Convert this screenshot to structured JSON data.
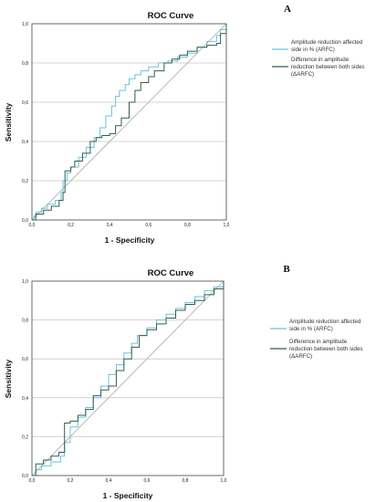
{
  "chart_data": [
    {
      "type": "line",
      "panel": "A",
      "title": "ROC Curve",
      "xlabel": "1 - Specificity",
      "ylabel": "Sensitivity",
      "xlim": [
        0,
        1
      ],
      "ylim": [
        0,
        1
      ],
      "xticks": [
        "0,0",
        "0,2",
        "0,4",
        "0,6",
        "0,8",
        "1,0"
      ],
      "yticks": [
        "0,0",
        "0,2",
        "0,4",
        "0,6",
        "0,8",
        "1,0"
      ],
      "grid": "horizontal",
      "legend_position": "right",
      "series": [
        {
          "name": "Amplitude reduction affected side in % (ARFC)",
          "color": "#6cc0e0",
          "points": [
            [
              0,
              0
            ],
            [
              0.01,
              0.02
            ],
            [
              0.02,
              0.04
            ],
            [
              0.05,
              0.06
            ],
            [
              0.08,
              0.08
            ],
            [
              0.12,
              0.1
            ],
            [
              0.15,
              0.14
            ],
            [
              0.16,
              0.2
            ],
            [
              0.18,
              0.24
            ],
            [
              0.2,
              0.27
            ],
            [
              0.24,
              0.32
            ],
            [
              0.28,
              0.37
            ],
            [
              0.32,
              0.42
            ],
            [
              0.35,
              0.47
            ],
            [
              0.38,
              0.53
            ],
            [
              0.41,
              0.58
            ],
            [
              0.43,
              0.63
            ],
            [
              0.45,
              0.66
            ],
            [
              0.48,
              0.69
            ],
            [
              0.5,
              0.72
            ],
            [
              0.53,
              0.74
            ],
            [
              0.56,
              0.76
            ],
            [
              0.6,
              0.78
            ],
            [
              0.65,
              0.8
            ],
            [
              0.7,
              0.81
            ],
            [
              0.75,
              0.83
            ],
            [
              0.8,
              0.85
            ],
            [
              0.85,
              0.88
            ],
            [
              0.9,
              0.91
            ],
            [
              0.95,
              0.94
            ],
            [
              0.97,
              0.97
            ],
            [
              1,
              1
            ]
          ]
        },
        {
          "name": "Difference in amplitude reduction between both sides (ΔARFC)",
          "color": "#2f5f4f",
          "points": [
            [
              0,
              0
            ],
            [
              0.02,
              0.03
            ],
            [
              0.06,
              0.05
            ],
            [
              0.1,
              0.07
            ],
            [
              0.14,
              0.1
            ],
            [
              0.16,
              0.14
            ],
            [
              0.17,
              0.25
            ],
            [
              0.2,
              0.27
            ],
            [
              0.22,
              0.3
            ],
            [
              0.26,
              0.34
            ],
            [
              0.3,
              0.4
            ],
            [
              0.33,
              0.42
            ],
            [
              0.36,
              0.43
            ],
            [
              0.4,
              0.44
            ],
            [
              0.43,
              0.48
            ],
            [
              0.46,
              0.52
            ],
            [
              0.5,
              0.6
            ],
            [
              0.53,
              0.66
            ],
            [
              0.56,
              0.7
            ],
            [
              0.6,
              0.73
            ],
            [
              0.63,
              0.76
            ],
            [
              0.68,
              0.8
            ],
            [
              0.72,
              0.82
            ],
            [
              0.76,
              0.84
            ],
            [
              0.8,
              0.86
            ],
            [
              0.85,
              0.88
            ],
            [
              0.9,
              0.89
            ],
            [
              0.95,
              0.9
            ],
            [
              0.97,
              0.95
            ],
            [
              1,
              1
            ]
          ]
        }
      ]
    },
    {
      "type": "line",
      "panel": "B",
      "title": "ROC Curve",
      "xlabel": "1 - Specificity",
      "ylabel": "Sensitivity",
      "xlim": [
        0,
        1
      ],
      "ylim": [
        0,
        1
      ],
      "xticks": [
        "0,0",
        "0,2",
        "0,4",
        "0,6",
        "0,8",
        "1,0"
      ],
      "yticks": [
        "0,0",
        "0,2",
        "0,4",
        "0,6",
        "0,8",
        "1,0"
      ],
      "grid": "horizontal",
      "legend_position": "right",
      "series": [
        {
          "name": "Amplitude reduction affected side in % (ARFC)",
          "color": "#6cc0e0",
          "points": [
            [
              0,
              0
            ],
            [
              0.02,
              0.03
            ],
            [
              0.05,
              0.05
            ],
            [
              0.1,
              0.07
            ],
            [
              0.15,
              0.1
            ],
            [
              0.17,
              0.17
            ],
            [
              0.2,
              0.25
            ],
            [
              0.24,
              0.3
            ],
            [
              0.28,
              0.35
            ],
            [
              0.32,
              0.4
            ],
            [
              0.36,
              0.46
            ],
            [
              0.4,
              0.52
            ],
            [
              0.44,
              0.57
            ],
            [
              0.48,
              0.63
            ],
            [
              0.52,
              0.68
            ],
            [
              0.55,
              0.72
            ],
            [
              0.6,
              0.76
            ],
            [
              0.65,
              0.8
            ],
            [
              0.7,
              0.83
            ],
            [
              0.75,
              0.86
            ],
            [
              0.8,
              0.89
            ],
            [
              0.85,
              0.92
            ],
            [
              0.9,
              0.95
            ],
            [
              0.95,
              0.97
            ],
            [
              1,
              1
            ]
          ]
        },
        {
          "name": "Difference in amplitude reduction between both sides (ΔARFC)",
          "color": "#2f5f4f",
          "points": [
            [
              0,
              0
            ],
            [
              0.02,
              0.06
            ],
            [
              0.06,
              0.08
            ],
            [
              0.1,
              0.1
            ],
            [
              0.14,
              0.12
            ],
            [
              0.17,
              0.27
            ],
            [
              0.2,
              0.28
            ],
            [
              0.24,
              0.31
            ],
            [
              0.28,
              0.34
            ],
            [
              0.32,
              0.41
            ],
            [
              0.36,
              0.44
            ],
            [
              0.4,
              0.46
            ],
            [
              0.44,
              0.54
            ],
            [
              0.48,
              0.6
            ],
            [
              0.52,
              0.66
            ],
            [
              0.56,
              0.72
            ],
            [
              0.6,
              0.75
            ],
            [
              0.65,
              0.78
            ],
            [
              0.7,
              0.81
            ],
            [
              0.75,
              0.85
            ],
            [
              0.8,
              0.88
            ],
            [
              0.85,
              0.9
            ],
            [
              0.9,
              0.93
            ],
            [
              0.95,
              0.96
            ],
            [
              1,
              1
            ]
          ]
        }
      ]
    }
  ]
}
